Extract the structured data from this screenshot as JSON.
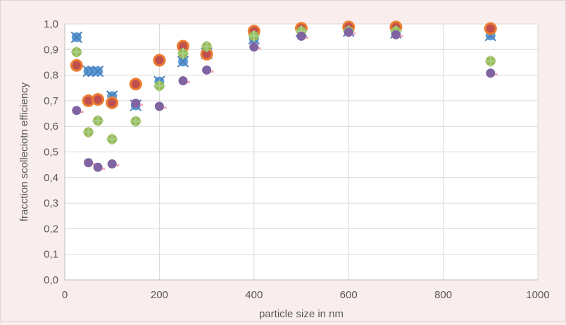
{
  "chart_data": {
    "type": "scatter",
    "title": "",
    "xlabel": "particle size in nm",
    "ylabel": "fracction scolleciotn efficiency",
    "xlim": [
      0,
      1000
    ],
    "ylim": [
      0,
      1
    ],
    "x_ticks": [
      0,
      200,
      400,
      600,
      800,
      1000
    ],
    "x_tick_labels": [
      "0",
      "200",
      "400",
      "600",
      "800",
      "1000"
    ],
    "y_ticks": [
      0,
      0.1,
      0.2,
      0.3,
      0.4,
      0.5,
      0.6,
      0.7,
      0.8,
      0.9,
      1.0
    ],
    "y_tick_labels": [
      "0,0",
      "0,1",
      "0,2",
      "0,3",
      "0,4",
      "0,5",
      "0,6",
      "0,7",
      "0,8",
      "0,9",
      "1,0"
    ],
    "grid": "both",
    "legend": "none",
    "series": [
      {
        "marker": "x-over-circle",
        "color": "#5b9bd5",
        "x_color": "#4a7ebb",
        "points": [
          [
            25,
            0.948
          ],
          [
            50,
            0.815
          ],
          [
            60,
            0.815
          ],
          [
            70,
            0.815
          ],
          [
            100,
            0.718
          ],
          [
            150,
            0.682
          ],
          [
            200,
            0.775
          ],
          [
            250,
            0.853
          ],
          [
            300,
            0.885
          ],
          [
            400,
            0.942
          ],
          [
            500,
            0.972
          ],
          [
            600,
            0.972
          ],
          [
            700,
            0.965
          ],
          [
            900,
            0.955
          ]
        ]
      },
      {
        "marker": "circle-large",
        "color": "#ed7d31",
        "inner_color": "#c0504d",
        "points": [
          [
            25,
            0.838
          ],
          [
            50,
            0.7
          ],
          [
            70,
            0.705
          ],
          [
            100,
            0.692
          ],
          [
            150,
            0.765
          ],
          [
            200,
            0.858
          ],
          [
            250,
            0.913
          ],
          [
            300,
            0.882
          ],
          [
            400,
            0.972
          ],
          [
            500,
            0.983
          ],
          [
            600,
            0.988
          ],
          [
            700,
            0.988
          ],
          [
            900,
            0.982
          ]
        ]
      },
      {
        "marker": "plus-over-circle",
        "color": "#9bbb59",
        "plus_color": "#a9d18e",
        "points": [
          [
            25,
            0.89
          ],
          [
            50,
            0.577
          ],
          [
            70,
            0.622
          ],
          [
            100,
            0.55
          ],
          [
            150,
            0.62
          ],
          [
            200,
            0.758
          ],
          [
            250,
            0.885
          ],
          [
            300,
            0.912
          ],
          [
            400,
            0.953
          ],
          [
            500,
            0.972
          ],
          [
            600,
            0.972
          ],
          [
            700,
            0.972
          ],
          [
            900,
            0.855
          ]
        ]
      },
      {
        "marker": "circle-with-tick",
        "color": "#8064a2",
        "tick_color": "#f4a9b8",
        "points": [
          [
            25,
            0.662
          ],
          [
            50,
            0.458
          ],
          [
            70,
            0.44
          ],
          [
            100,
            0.453
          ],
          [
            150,
            0.69
          ],
          [
            200,
            0.678
          ],
          [
            250,
            0.778
          ],
          [
            300,
            0.82
          ],
          [
            400,
            0.91
          ],
          [
            500,
            0.952
          ],
          [
            600,
            0.968
          ],
          [
            700,
            0.958
          ],
          [
            900,
            0.808
          ]
        ]
      }
    ]
  }
}
